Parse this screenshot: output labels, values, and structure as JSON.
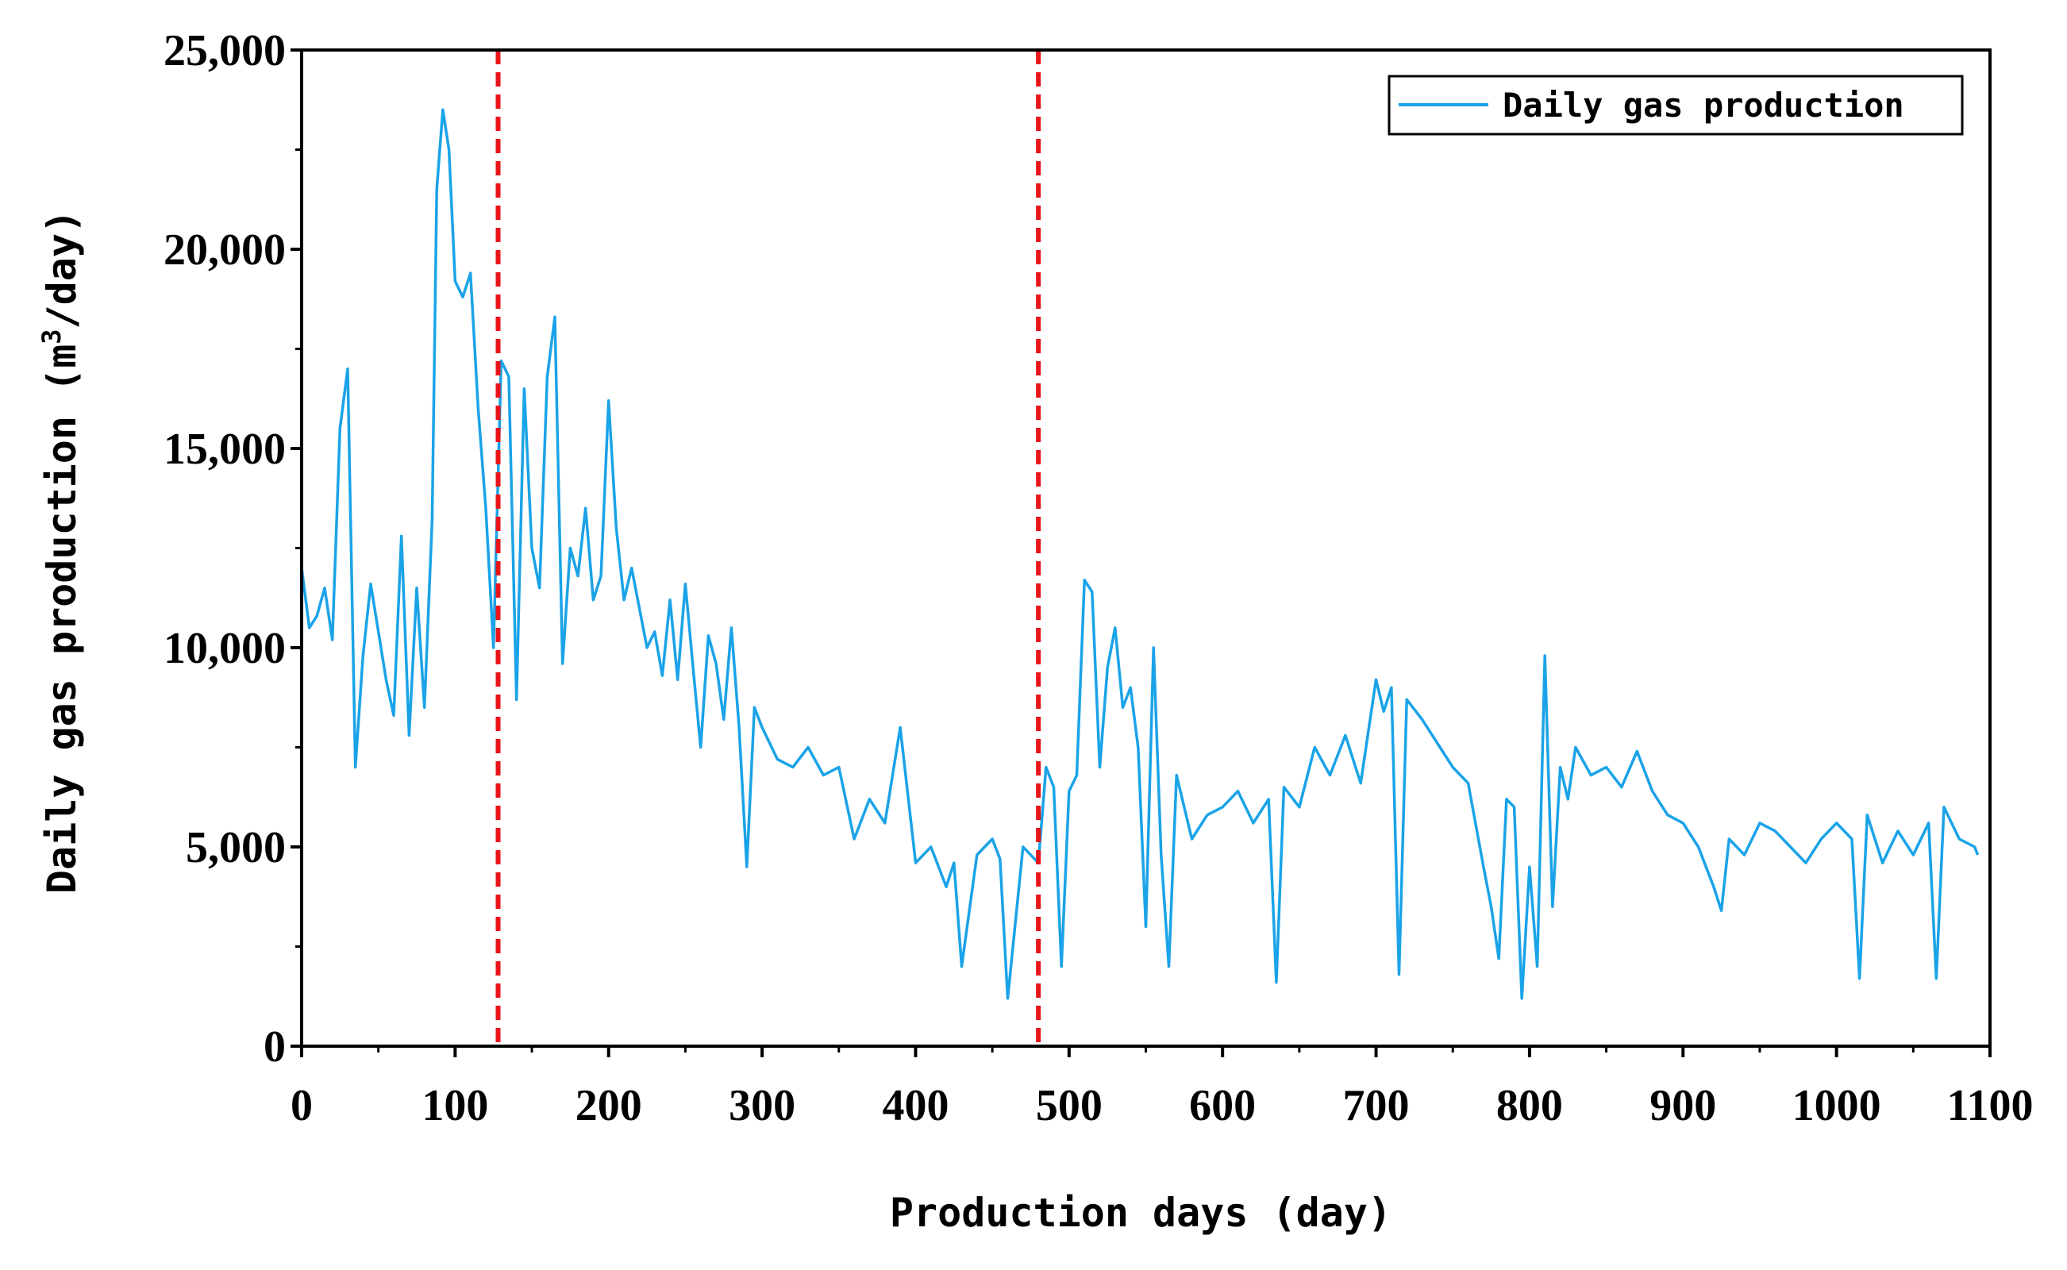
{
  "chart_data": {
    "type": "line",
    "title": "",
    "xlabel": "Production days (day)",
    "ylabel": "Daily gas production (m³/day)",
    "ylabel_parts": {
      "pre": "Daily gas production (m",
      "sup": "3",
      "post": "/day)"
    },
    "xlim": [
      0,
      1100
    ],
    "ylim": [
      0,
      25000
    ],
    "x_ticks": [
      0,
      100,
      200,
      300,
      400,
      500,
      600,
      700,
      800,
      900,
      1000,
      1100
    ],
    "x_tick_labels": [
      "0",
      "100",
      "200",
      "300",
      "400",
      "500",
      "600",
      "700",
      "800",
      "900",
      "1000",
      "1100"
    ],
    "y_ticks": [
      0,
      5000,
      10000,
      15000,
      20000,
      25000
    ],
    "y_tick_labels": [
      "0",
      "5,000",
      "10,000",
      "15,000",
      "20,000",
      "25,000"
    ],
    "grid": false,
    "legend": {
      "position": "top-right",
      "entries": [
        "Daily gas production"
      ]
    },
    "series": [
      {
        "name": "Daily gas production",
        "color": "#1aa3e8",
        "x": [
          0,
          5,
          10,
          15,
          20,
          25,
          30,
          35,
          40,
          45,
          50,
          55,
          60,
          65,
          70,
          75,
          80,
          85,
          88,
          92,
          96,
          100,
          105,
          110,
          115,
          120,
          125,
          130,
          135,
          140,
          145,
          150,
          155,
          160,
          165,
          170,
          175,
          180,
          185,
          190,
          195,
          200,
          205,
          210,
          215,
          220,
          225,
          230,
          235,
          240,
          245,
          250,
          255,
          260,
          265,
          270,
          275,
          280,
          285,
          290,
          295,
          300,
          310,
          320,
          330,
          340,
          350,
          360,
          370,
          380,
          390,
          400,
          410,
          420,
          425,
          430,
          440,
          450,
          455,
          460,
          470,
          480,
          485,
          490,
          495,
          500,
          505,
          510,
          515,
          520,
          525,
          530,
          535,
          540,
          545,
          550,
          555,
          560,
          565,
          570,
          580,
          590,
          600,
          610,
          620,
          630,
          635,
          640,
          650,
          660,
          670,
          680,
          690,
          700,
          705,
          710,
          715,
          720,
          730,
          740,
          750,
          760,
          770,
          775,
          780,
          785,
          790,
          795,
          800,
          805,
          810,
          815,
          820,
          825,
          830,
          840,
          850,
          860,
          870,
          880,
          890,
          900,
          910,
          920,
          925,
          930,
          940,
          950,
          960,
          970,
          980,
          990,
          1000,
          1010,
          1015,
          1020,
          1030,
          1040,
          1050,
          1060,
          1065,
          1070,
          1080,
          1090,
          1092
        ],
        "values": [
          12000,
          10500,
          10800,
          11500,
          10200,
          15500,
          17000,
          7000,
          9800,
          11600,
          10400,
          9200,
          8300,
          12800,
          7800,
          11500,
          8500,
          13200,
          21500,
          23500,
          22500,
          19200,
          18800,
          19400,
          16000,
          13500,
          10000,
          17200,
          16800,
          8700,
          16500,
          12500,
          11500,
          16800,
          18300,
          9600,
          12500,
          11800,
          13500,
          11200,
          11800,
          16200,
          13000,
          11200,
          12000,
          11000,
          10000,
          10400,
          9300,
          11200,
          9200,
          11600,
          9500,
          7500,
          10300,
          9600,
          8200,
          10500,
          8000,
          4500,
          8500,
          8000,
          7200,
          7000,
          7500,
          6800,
          7000,
          5200,
          6200,
          5600,
          8000,
          4600,
          5000,
          4000,
          4600,
          2000,
          4800,
          5200,
          4700,
          1200,
          5000,
          4600,
          7000,
          6500,
          2000,
          6400,
          6800,
          11700,
          11400,
          7000,
          9500,
          10500,
          8500,
          9000,
          7500,
          3000,
          10000,
          4800,
          2000,
          6800,
          5200,
          5800,
          6000,
          6400,
          5600,
          6200,
          1600,
          6500,
          6000,
          7500,
          6800,
          7800,
          6600,
          9200,
          8400,
          9000,
          1800,
          8700,
          8200,
          7600,
          7000,
          6600,
          4500,
          3500,
          2200,
          6200,
          6000,
          1200,
          4500,
          2000,
          9800,
          3500,
          7000,
          6200,
          7500,
          6800,
          7000,
          6500,
          7400,
          6400,
          5800,
          5600,
          5000,
          4000,
          3400,
          5200,
          4800,
          5600,
          5400,
          5000,
          4600,
          5200,
          5600,
          5200,
          1700,
          5800,
          4600,
          5400,
          4800,
          5600,
          1700,
          6000,
          5200,
          5000,
          4800
        ]
      }
    ],
    "vlines": [
      {
        "x": 128,
        "color": "#e8141a",
        "style": "dashed"
      },
      {
        "x": 480,
        "color": "#e8141a",
        "style": "dashed"
      }
    ]
  }
}
